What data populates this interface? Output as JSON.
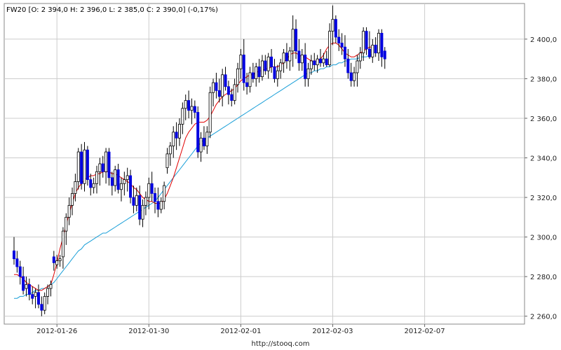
{
  "header": "FW20 [O: 2 394,0  H: 2 396,0  L: 2 385,0  C: 2 390,0] (-0,17%)",
  "footer": "http://stooq.com",
  "colors": {
    "up": "#ffffff",
    "down": "#0000e0",
    "wick": "#000000",
    "ma_short": "#e00000",
    "ma_long": "#1a9fd8",
    "grid": "#cccccc"
  },
  "chart_data": {
    "type": "candlestick",
    "title": "FW20",
    "ylim": [
      2256,
      2418
    ],
    "yticks": [
      2260,
      2280,
      2300,
      2320,
      2340,
      2360,
      2380,
      2400
    ],
    "ytick_labels": [
      "2 260,0",
      "2 280,0",
      "2 300,0",
      "2 320,0",
      "2 340,0",
      "2 360,0",
      "2 380,0",
      "2 400,0"
    ],
    "xtick_labels": [
      {
        "label": "2012-01-26",
        "index": 14
      },
      {
        "label": "2012-01-30",
        "index": 44
      },
      {
        "label": "2012-02-01",
        "index": 74
      },
      {
        "label": "2012-02-03",
        "index": 104
      },
      {
        "label": "2012-02-07",
        "index": 134
      }
    ],
    "candles": [
      [
        2293,
        2300,
        2286,
        2289
      ],
      [
        2289,
        2293,
        2282,
        2285
      ],
      [
        2285,
        2288,
        2276,
        2280
      ],
      [
        2280,
        2285,
        2271,
        2273
      ],
      [
        2274,
        2280,
        2270,
        2276
      ],
      [
        2276,
        2279,
        2268,
        2271
      ],
      [
        2271,
        2275,
        2266,
        2269
      ],
      [
        2270,
        2274,
        2264,
        2272
      ],
      [
        2272,
        2276,
        2264,
        2266
      ],
      [
        2266,
        2270,
        2260,
        2263
      ],
      [
        2263,
        2272,
        2261,
        2270
      ],
      [
        2270,
        2276,
        2266,
        2274
      ],
      [
        2274,
        2278,
        2270,
        2276
      ],
      [
        2290,
        2293,
        2283,
        2287
      ],
      [
        2286,
        2291,
        2284,
        2288
      ],
      [
        2288,
        2291,
        2285,
        2289
      ],
      [
        2290,
        2305,
        2284,
        2303
      ],
      [
        2303,
        2312,
        2296,
        2310
      ],
      [
        2310,
        2320,
        2306,
        2316
      ],
      [
        2316,
        2325,
        2311,
        2322
      ],
      [
        2322,
        2332,
        2318,
        2328
      ],
      [
        2328,
        2345,
        2324,
        2343
      ],
      [
        2343,
        2347,
        2324,
        2327
      ],
      [
        2327,
        2348,
        2323,
        2344
      ],
      [
        2344,
        2346,
        2326,
        2329
      ],
      [
        2329,
        2332,
        2321,
        2325
      ],
      [
        2325,
        2330,
        2322,
        2327
      ],
      [
        2327,
        2336,
        2322,
        2333
      ],
      [
        2333,
        2340,
        2326,
        2337
      ],
      [
        2337,
        2341,
        2330,
        2333
      ],
      [
        2333,
        2345,
        2327,
        2343
      ],
      [
        2343,
        2345,
        2326,
        2330
      ],
      [
        2330,
        2333,
        2321,
        2326
      ],
      [
        2326,
        2336,
        2323,
        2334
      ],
      [
        2334,
        2337,
        2322,
        2324
      ],
      [
        2324,
        2330,
        2318,
        2327
      ],
      [
        2327,
        2333,
        2321,
        2329
      ],
      [
        2329,
        2335,
        2323,
        2331
      ],
      [
        2331,
        2334,
        2317,
        2320
      ],
      [
        2320,
        2326,
        2312,
        2316
      ],
      [
        2316,
        2325,
        2313,
        2321
      ],
      [
        2321,
        2326,
        2306,
        2309
      ],
      [
        2309,
        2319,
        2305,
        2316
      ],
      [
        2316,
        2323,
        2311,
        2320
      ],
      [
        2320,
        2330,
        2314,
        2327
      ],
      [
        2327,
        2333,
        2318,
        2322
      ],
      [
        2322,
        2325,
        2312,
        2318
      ],
      [
        2318,
        2325,
        2310,
        2314
      ],
      [
        2314,
        2320,
        2312,
        2318
      ],
      [
        2318,
        2328,
        2314,
        2326
      ],
      [
        2335,
        2345,
        2332,
        2342
      ],
      [
        2342,
        2348,
        2336,
        2346
      ],
      [
        2346,
        2356,
        2340,
        2353
      ],
      [
        2353,
        2358,
        2344,
        2350
      ],
      [
        2350,
        2360,
        2346,
        2357
      ],
      [
        2357,
        2368,
        2352,
        2365
      ],
      [
        2365,
        2372,
        2359,
        2369
      ],
      [
        2369,
        2374,
        2360,
        2364
      ],
      [
        2364,
        2370,
        2357,
        2366
      ],
      [
        2366,
        2369,
        2360,
        2363
      ],
      [
        2363,
        2366,
        2340,
        2343
      ],
      [
        2343,
        2353,
        2338,
        2350
      ],
      [
        2350,
        2356,
        2344,
        2346
      ],
      [
        2346,
        2356,
        2342,
        2353
      ],
      [
        2353,
        2376,
        2350,
        2373
      ],
      [
        2373,
        2380,
        2366,
        2378
      ],
      [
        2378,
        2383,
        2370,
        2374
      ],
      [
        2374,
        2380,
        2368,
        2371
      ],
      [
        2371,
        2385,
        2366,
        2382
      ],
      [
        2382,
        2386,
        2374,
        2376
      ],
      [
        2376,
        2379,
        2367,
        2372
      ],
      [
        2372,
        2375,
        2366,
        2369
      ],
      [
        2369,
        2380,
        2367,
        2377
      ],
      [
        2377,
        2388,
        2373,
        2385
      ],
      [
        2385,
        2395,
        2380,
        2392
      ],
      [
        2392,
        2400,
        2374,
        2378
      ],
      [
        2378,
        2383,
        2372,
        2376
      ],
      [
        2376,
        2386,
        2373,
        2383
      ],
      [
        2383,
        2388,
        2378,
        2380
      ],
      [
        2380,
        2388,
        2376,
        2386
      ],
      [
        2386,
        2390,
        2378,
        2381
      ],
      [
        2381,
        2392,
        2379,
        2389
      ],
      [
        2389,
        2392,
        2382,
        2384
      ],
      [
        2384,
        2393,
        2380,
        2391
      ],
      [
        2391,
        2395,
        2383,
        2386
      ],
      [
        2386,
        2390,
        2378,
        2380
      ],
      [
        2380,
        2387,
        2376,
        2384
      ],
      [
        2384,
        2390,
        2380,
        2388
      ],
      [
        2388,
        2395,
        2383,
        2393
      ],
      [
        2393,
        2398,
        2385,
        2389
      ],
      [
        2389,
        2396,
        2384,
        2394
      ],
      [
        2394,
        2412,
        2386,
        2405
      ],
      [
        2405,
        2410,
        2390,
        2394
      ],
      [
        2394,
        2400,
        2384,
        2388
      ],
      [
        2388,
        2395,
        2384,
        2392
      ],
      [
        2392,
        2398,
        2376,
        2380
      ],
      [
        2380,
        2388,
        2376,
        2385
      ],
      [
        2385,
        2392,
        2382,
        2389
      ],
      [
        2389,
        2393,
        2384,
        2387
      ],
      [
        2387,
        2392,
        2383,
        2390
      ],
      [
        2390,
        2395,
        2386,
        2388
      ],
      [
        2388,
        2393,
        2386,
        2390
      ],
      [
        2390,
        2394,
        2386,
        2387
      ],
      [
        2387,
        2408,
        2386,
        2404
      ],
      [
        2404,
        2417,
        2397,
        2410
      ],
      [
        2410,
        2412,
        2398,
        2401
      ],
      [
        2401,
        2405,
        2394,
        2398
      ],
      [
        2398,
        2403,
        2392,
        2396
      ],
      [
        2396,
        2402,
        2386,
        2390
      ],
      [
        2390,
        2395,
        2380,
        2383
      ],
      [
        2383,
        2388,
        2376,
        2379
      ],
      [
        2379,
        2386,
        2376,
        2383
      ],
      [
        2383,
        2392,
        2376,
        2389
      ],
      [
        2389,
        2396,
        2385,
        2393
      ],
      [
        2393,
        2406,
        2389,
        2404
      ],
      [
        2404,
        2406,
        2392,
        2395
      ],
      [
        2395,
        2404,
        2390,
        2391
      ],
      [
        2391,
        2400,
        2388,
        2397
      ],
      [
        2397,
        2401,
        2391,
        2393
      ],
      [
        2393,
        2405,
        2389,
        2403
      ],
      [
        2403,
        2405,
        2386,
        2391
      ],
      [
        2394,
        2396,
        2385,
        2390
      ]
    ],
    "ma_short": [
      2281,
      2281,
      2280,
      2279,
      2277,
      2276,
      2275,
      2274,
      2273,
      2273,
      2274,
      2275,
      2276,
      2281,
      2287,
      2294,
      2300,
      2306,
      2312,
      2317,
      2322,
      2325,
      2327,
      2329,
      2330,
      2331,
      2331,
      2332,
      2332,
      2333,
      2333,
      2333,
      2332,
      2332,
      2331,
      2330,
      2329,
      2328,
      2327,
      2325,
      2324,
      2322,
      2320,
      2319,
      2318,
      2318,
      2317,
      2317,
      2317,
      2319,
      2322,
      2326,
      2330,
      2335,
      2340,
      2345,
      2350,
      2353,
      2355,
      2357,
      2358,
      2358,
      2358,
      2359,
      2361,
      2364,
      2367,
      2369,
      2371,
      2372,
      2373,
      2374,
      2375,
      2377,
      2379,
      2380,
      2381,
      2382,
      2382,
      2383,
      2384,
      2384,
      2385,
      2385,
      2386,
      2386,
      2386,
      2387,
      2388,
      2390,
      2392,
      2393,
      2393,
      2392,
      2391,
      2391,
      2390,
      2389,
      2389,
      2389,
      2390,
      2392,
      2395,
      2397,
      2398,
      2398,
      2397,
      2395,
      2393,
      2392,
      2391,
      2391,
      2392,
      2393,
      2394,
      2395,
      2396,
      2396
    ],
    "ma_long": [
      2269,
      2269,
      2270,
      2270,
      2271,
      2271,
      2272,
      2273,
      2273,
      2274,
      2274,
      2275,
      2276,
      2277,
      2279,
      2281,
      2283,
      2285,
      2287,
      2289,
      2291,
      2293,
      2294,
      2296,
      2297,
      2298,
      2299,
      2300,
      2301,
      2302,
      2302,
      2303,
      2304,
      2305,
      2306,
      2307,
      2308,
      2309,
      2310,
      2311,
      2312,
      2313,
      2314,
      2315,
      2316,
      2317,
      2318,
      2320,
      2322,
      2324,
      2326,
      2328,
      2330,
      2332,
      2334,
      2336,
      2338,
      2340,
      2342,
      2344,
      2346,
      2348,
      2349,
      2350,
      2351,
      2352,
      2353,
      2354,
      2355,
      2356,
      2357,
      2358,
      2359,
      2360,
      2361,
      2362,
      2363,
      2364,
      2365,
      2366,
      2367,
      2368,
      2369,
      2370,
      2371,
      2372,
      2373,
      2374,
      2375,
      2376,
      2377,
      2378,
      2379,
      2380,
      2381,
      2382,
      2383,
      2383,
      2384,
      2384,
      2385,
      2385,
      2386,
      2386,
      2387,
      2387,
      2388,
      2388,
      2389,
      2389,
      2390,
      2390,
      2390,
      2391,
      2391,
      2391,
      2392,
      2392
    ]
  }
}
